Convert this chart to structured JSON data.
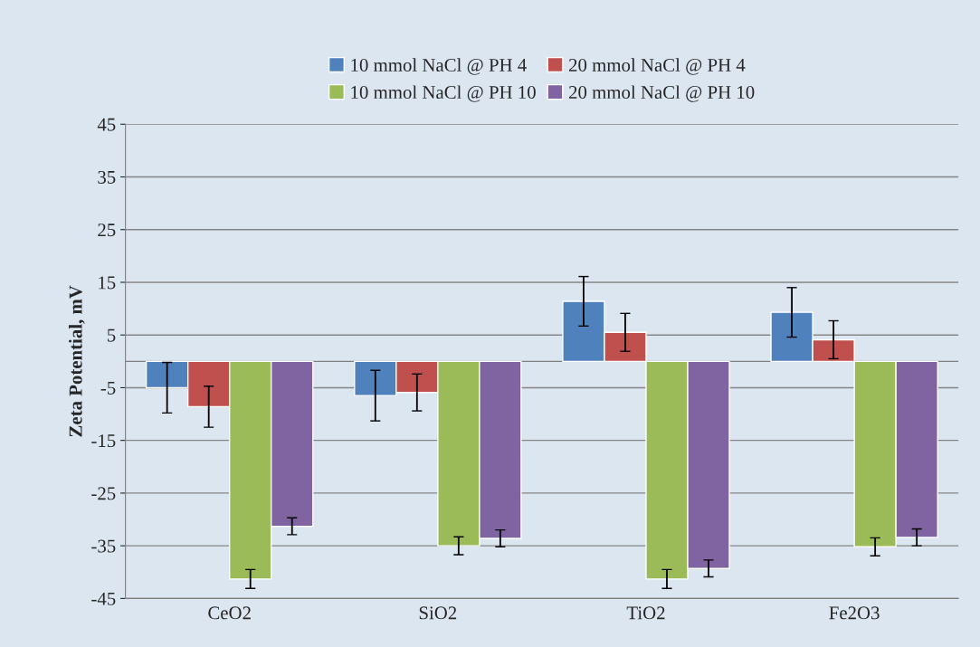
{
  "chart_data": {
    "type": "bar",
    "ylabel": "Zeta Potential, mV",
    "categories": [
      "CeO2",
      "SiO2",
      "TiO2",
      "Fe2O3"
    ],
    "series": [
      {
        "name": "10 mmol NaCl @ PH 4",
        "color": "#4f81bd",
        "values": [
          -5,
          -6.5,
          11.4,
          9.3
        ],
        "errors": [
          4.8,
          4.8,
          4.7,
          4.7
        ]
      },
      {
        "name": "20 mmol NaCl @ PH 4",
        "color": "#c0504d",
        "values": [
          -8.6,
          -5.9,
          5.5,
          4.1
        ],
        "errors": [
          3.9,
          3.5,
          3.6,
          3.6
        ]
      },
      {
        "name": "10 mmol NaCl @ PH 10",
        "color": "#9bbb59",
        "values": [
          -41.3,
          -35,
          -41.3,
          -35.2
        ],
        "errors": [
          1.8,
          1.7,
          1.8,
          1.7
        ]
      },
      {
        "name": "20 mmol NaCl @ PH 10",
        "color": "#8064a2",
        "values": [
          -31.3,
          -33.6,
          -39.3,
          -33.4
        ],
        "errors": [
          1.6,
          1.6,
          1.6,
          1.6
        ]
      }
    ],
    "ylim": [
      -45,
      45
    ],
    "yticks": [
      -45,
      -35,
      -25,
      -15,
      -5,
      5,
      15,
      25,
      35,
      45
    ],
    "grid": "y",
    "legend": "top"
  }
}
